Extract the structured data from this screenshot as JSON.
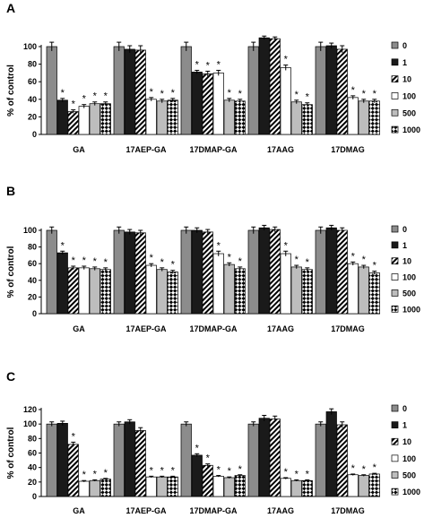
{
  "figure": {
    "panels": [
      "A",
      "B",
      "C"
    ]
  },
  "chart_data": [
    {
      "type": "bar",
      "panel": "A",
      "ylabel": "% of control",
      "ylim": [
        0,
        100
      ],
      "yticks": [
        0,
        20,
        40,
        60,
        80,
        100
      ],
      "categories": [
        "GA",
        "17AEP-GA",
        "17DMAP-GA",
        "17AAG",
        "17DMAG"
      ],
      "legend_position": "right",
      "series": [
        {
          "name": "0",
          "values": [
            100,
            100,
            100,
            100,
            100
          ],
          "errors": [
            5,
            5,
            5,
            5,
            5
          ],
          "significant": [
            false,
            false,
            false,
            false,
            false
          ]
        },
        {
          "name": "1",
          "values": [
            39,
            97,
            71,
            110,
            101
          ],
          "errors": [
            2,
            4,
            2,
            2,
            3
          ],
          "significant": [
            true,
            false,
            true,
            false,
            false
          ]
        },
        {
          "name": "10",
          "values": [
            26,
            96,
            69,
            109,
            97
          ],
          "errors": [
            2,
            5,
            3,
            2,
            4
          ],
          "significant": [
            true,
            false,
            true,
            false,
            false
          ]
        },
        {
          "name": "100",
          "values": [
            32,
            40,
            70,
            76,
            42
          ],
          "errors": [
            2,
            2,
            3,
            3,
            2
          ],
          "significant": [
            true,
            true,
            true,
            true,
            true
          ]
        },
        {
          "name": "500",
          "values": [
            35,
            38,
            39,
            37,
            38
          ],
          "errors": [
            2,
            2,
            2,
            2,
            2
          ],
          "significant": [
            true,
            true,
            true,
            true,
            true
          ]
        },
        {
          "name": "1000",
          "values": [
            35,
            39,
            38,
            34,
            38
          ],
          "errors": [
            2,
            2,
            2,
            2,
            2
          ],
          "significant": [
            true,
            true,
            true,
            true,
            true
          ]
        }
      ]
    },
    {
      "type": "bar",
      "panel": "B",
      "ylabel": "% of control",
      "ylim": [
        0,
        100
      ],
      "yticks": [
        0,
        20,
        40,
        60,
        80,
        100
      ],
      "categories": [
        "GA",
        "17AEP-GA",
        "17DMAP-GA",
        "17AAG",
        "17DMAG"
      ],
      "legend_position": "right",
      "series": [
        {
          "name": "0",
          "values": [
            100,
            100,
            100,
            100,
            100
          ],
          "errors": [
            4,
            4,
            4,
            4,
            4
          ],
          "significant": [
            false,
            false,
            false,
            false,
            false
          ]
        },
        {
          "name": "1",
          "values": [
            73,
            98,
            100,
            103,
            103
          ],
          "errors": [
            2,
            3,
            3,
            3,
            3
          ],
          "significant": [
            true,
            false,
            false,
            false,
            false
          ]
        },
        {
          "name": "10",
          "values": [
            55,
            97,
            98,
            101,
            100
          ],
          "errors": [
            2,
            3,
            3,
            3,
            3
          ],
          "significant": [
            true,
            false,
            false,
            false,
            false
          ]
        },
        {
          "name": "100",
          "values": [
            55,
            58,
            72,
            72,
            60
          ],
          "errors": [
            2,
            2,
            3,
            3,
            2
          ],
          "significant": [
            true,
            true,
            true,
            true,
            true
          ]
        },
        {
          "name": "500",
          "values": [
            54,
            53,
            59,
            56,
            56
          ],
          "errors": [
            2,
            2,
            2,
            2,
            2
          ],
          "significant": [
            true,
            true,
            true,
            true,
            true
          ]
        },
        {
          "name": "1000",
          "values": [
            53,
            50,
            54,
            53,
            49
          ],
          "errors": [
            2,
            2,
            2,
            2,
            2
          ],
          "significant": [
            true,
            true,
            true,
            true,
            true
          ]
        }
      ]
    },
    {
      "type": "bar",
      "panel": "C",
      "ylabel": "% of control",
      "ylim": [
        0,
        120
      ],
      "yticks": [
        0,
        20,
        40,
        60,
        80,
        100,
        120
      ],
      "categories": [
        "GA",
        "17AEP-GA",
        "17DMAP-GA",
        "17AAG",
        "17DMAG"
      ],
      "legend_position": "right",
      "series": [
        {
          "name": "0",
          "values": [
            100,
            100,
            100,
            100,
            100
          ],
          "errors": [
            3,
            3,
            3,
            3,
            3
          ],
          "significant": [
            false,
            false,
            false,
            false,
            false
          ]
        },
        {
          "name": "1",
          "values": [
            101,
            103,
            57,
            108,
            117
          ],
          "errors": [
            3,
            3,
            2,
            4,
            4
          ],
          "significant": [
            false,
            false,
            true,
            false,
            false
          ]
        },
        {
          "name": "10",
          "values": [
            72,
            91,
            43,
            107,
            99
          ],
          "errors": [
            3,
            4,
            2,
            4,
            4
          ],
          "significant": [
            true,
            false,
            true,
            false,
            false
          ]
        },
        {
          "name": "100",
          "values": [
            21,
            27,
            28,
            25,
            30
          ],
          "errors": [
            1,
            1,
            1,
            1,
            1
          ],
          "significant": [
            true,
            true,
            true,
            true,
            true
          ]
        },
        {
          "name": "500",
          "values": [
            22,
            27,
            26,
            22,
            29
          ],
          "errors": [
            1,
            1,
            1,
            1,
            1
          ],
          "significant": [
            true,
            true,
            true,
            true,
            true
          ]
        },
        {
          "name": "1000",
          "values": [
            24,
            27,
            29,
            22,
            31
          ],
          "errors": [
            1,
            1,
            1,
            1,
            1
          ],
          "significant": [
            true,
            true,
            true,
            true,
            true
          ]
        }
      ]
    }
  ],
  "styles": {
    "fills": {
      "0": "#8c8c8c",
      "1": "#1a1a1a",
      "10": "diag-hatch",
      "100": "#ffffff",
      "500": "#bdbdbd",
      "1000": "checker"
    },
    "significance_marker": "*"
  }
}
